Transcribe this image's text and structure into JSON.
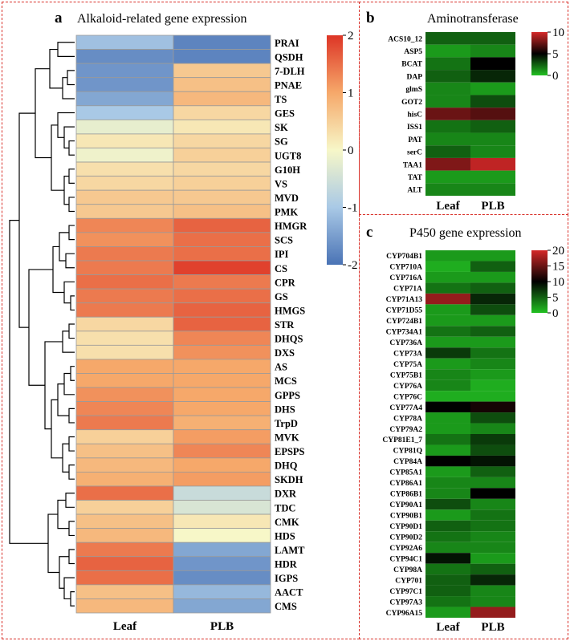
{
  "panels": [
    {
      "id": "a",
      "label": "a",
      "title": "Alkaloid-related gene expression",
      "columns": [
        "Leaf",
        "PLB"
      ],
      "colorbar": {
        "ticks": [
          2,
          1,
          0,
          -1,
          -2
        ],
        "min": -2,
        "max": 2,
        "colors": {
          "low": "#4a73b5",
          "mid": "#f7f7c8",
          "high": "#dd3526"
        }
      },
      "rows": [
        "PRAI",
        "QSDH",
        "7-DLH",
        "PNAE",
        "TS",
        "GES",
        "SK",
        "SG",
        "UGT8",
        "G10H",
        "VS",
        "MVD",
        "PMK",
        "HMGR",
        "SCS",
        "IPI",
        "CS",
        "CPR",
        "GS",
        "HMGS",
        "STR",
        "DHQS",
        "DXS",
        "AS",
        "MCS",
        "GPPS",
        "DHS",
        "TrpD",
        "MVK",
        "EPSPS",
        "DHQ",
        "SKDH",
        "DXR",
        "TDC",
        "CMK",
        "HDS",
        "LAMT",
        "HDR",
        "IGPS",
        "AACT",
        "CMS"
      ],
      "chart_data": {
        "type": "heatmap",
        "title": "Alkaloid-related gene expression",
        "x": [
          "Leaf",
          "PLB"
        ],
        "values": [
          [
            -1.1,
            -1.8
          ],
          [
            -1.7,
            -1.8
          ],
          [
            -1.6,
            0.6
          ],
          [
            -1.6,
            0.7
          ],
          [
            -1.4,
            0.8
          ],
          [
            -1.0,
            0.4
          ],
          [
            -0.2,
            0.2
          ],
          [
            0.2,
            0.4
          ],
          [
            -0.1,
            0.5
          ],
          [
            0.3,
            0.4
          ],
          [
            0.4,
            0.5
          ],
          [
            0.6,
            0.6
          ],
          [
            0.6,
            0.7
          ],
          [
            1.3,
            1.6
          ],
          [
            1.2,
            1.5
          ],
          [
            1.4,
            1.5
          ],
          [
            1.4,
            1.9
          ],
          [
            1.5,
            1.4
          ],
          [
            1.4,
            1.5
          ],
          [
            1.4,
            1.6
          ],
          [
            0.4,
            1.6
          ],
          [
            0.3,
            1.3
          ],
          [
            0.3,
            1.2
          ],
          [
            1.0,
            1.0
          ],
          [
            1.0,
            1.0
          ],
          [
            1.2,
            1.0
          ],
          [
            1.3,
            1.0
          ],
          [
            1.4,
            0.9
          ],
          [
            0.5,
            1.1
          ],
          [
            0.7,
            1.3
          ],
          [
            0.8,
            1.0
          ],
          [
            0.9,
            1.1
          ],
          [
            1.5,
            -0.6
          ],
          [
            0.5,
            -0.4
          ],
          [
            0.7,
            0.2
          ],
          [
            0.8,
            0.0
          ],
          [
            1.4,
            -1.4
          ],
          [
            1.6,
            -1.6
          ],
          [
            1.5,
            -1.7
          ],
          [
            0.7,
            -1.2
          ],
          [
            0.8,
            -1.4
          ]
        ]
      }
    },
    {
      "id": "b",
      "label": "b",
      "title": "Aminotransferase",
      "columns": [
        "Leaf",
        "PLB"
      ],
      "colorbar": {
        "ticks": [
          10,
          5,
          0
        ],
        "min": 0,
        "max": 10
      },
      "rows": [
        "ACS10_12",
        "ASP5",
        "BCAT",
        "DAP",
        "glmS",
        "GOT2",
        "hisC",
        "ISS1",
        "PAT",
        "serC",
        "TAA1",
        "TAT",
        "ALT"
      ],
      "chart_data": {
        "type": "heatmap",
        "title": "Aminotransferase",
        "x": [
          "Leaf",
          "PLB"
        ],
        "values": [
          [
            2.5,
            2.5
          ],
          [
            1.0,
            1.5
          ],
          [
            2.0,
            5.0
          ],
          [
            2.5,
            4.0
          ],
          [
            1.5,
            1.0
          ],
          [
            1.5,
            3.0
          ],
          [
            7.5,
            7.0
          ],
          [
            2.0,
            2.5
          ],
          [
            1.5,
            1.5
          ],
          [
            2.5,
            1.5
          ],
          [
            8.0,
            9.5
          ],
          [
            1.0,
            1.0
          ],
          [
            1.5,
            1.5
          ]
        ]
      }
    },
    {
      "id": "c",
      "label": "c",
      "title": "P450 gene expression",
      "columns": [
        "Leaf",
        "PLB"
      ],
      "colorbar": {
        "ticks": [
          20,
          15,
          10,
          5,
          0
        ],
        "min": 0,
        "max": 20
      },
      "rows": [
        "CYP704B1",
        "CYP710A",
        "CYP716A",
        "CYP71A",
        "CYP71A13",
        "CYP71D55",
        "CYP724B1",
        "CYP734A1",
        "CYP736A",
        "CYP73A",
        "CYP75A",
        "CYP75B1",
        "CYP76A",
        "CYP76C",
        "CYP77A4",
        "CYP78A",
        "CYP79A2",
        "CYP81E1_7",
        "CYP81Q",
        "CYP84A",
        "CYP85A1",
        "CYP86A1",
        "CYP86B1",
        "CYP90A1",
        "CYP90B1",
        "CYP90D1",
        "CYP90D2",
        "CYP92A6",
        "CYP94C1",
        "CYP98A",
        "CYP701",
        "CYP97C1",
        "CYP97A3",
        "CYP96A15"
      ],
      "chart_data": {
        "type": "heatmap",
        "title": "P450 gene expression",
        "x": [
          "Leaf",
          "PLB"
        ],
        "values": [
          [
            2,
            2
          ],
          [
            1,
            5
          ],
          [
            2,
            2
          ],
          [
            4,
            5
          ],
          [
            17,
            8
          ],
          [
            2,
            6
          ],
          [
            2,
            2
          ],
          [
            4,
            5
          ],
          [
            2,
            2
          ],
          [
            7,
            4
          ],
          [
            2,
            3
          ],
          [
            3,
            2
          ],
          [
            3,
            1
          ],
          [
            1,
            1
          ],
          [
            10,
            11
          ],
          [
            2,
            6
          ],
          [
            2,
            3
          ],
          [
            4,
            7
          ],
          [
            2,
            6
          ],
          [
            10,
            9
          ],
          [
            2,
            5
          ],
          [
            3,
            3
          ],
          [
            3,
            10
          ],
          [
            6,
            3
          ],
          [
            2,
            4
          ],
          [
            5,
            4
          ],
          [
            4,
            3
          ],
          [
            3,
            3
          ],
          [
            9,
            2
          ],
          [
            4,
            5
          ],
          [
            5,
            8
          ],
          [
            5,
            3
          ],
          [
            4,
            3
          ],
          [
            2,
            17
          ]
        ]
      }
    }
  ]
}
